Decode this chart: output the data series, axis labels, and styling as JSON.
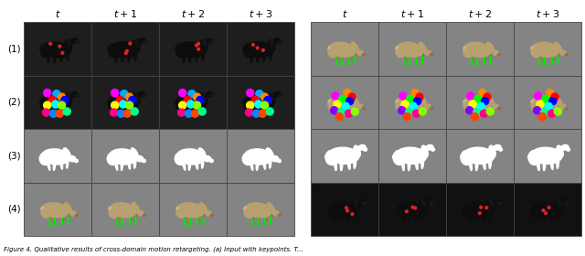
{
  "col_headers": [
    "$t$",
    "$t+1$",
    "$t+2$",
    "$t+3$"
  ],
  "row_labels": [
    "(1)",
    "(2)",
    "(3)",
    "(4)"
  ],
  "figure_width": 6.4,
  "figure_height": 2.8,
  "cell_bg_gray": "#848484",
  "dark_horse_bg": "#1c1c1c",
  "deer_bg": "#848484",
  "caption_text": "Figure 4. Qualitative results of cross-domain motion retargeting. (a) Input with keypoints. T...",
  "kp_colors_left": [
    "#ff00ff",
    "#00aaff",
    "#ff8800",
    "#ff0000",
    "#0000ff",
    "#ffff00",
    "#00ffff",
    "#88ff00",
    "#ff0088",
    "#0088ff",
    "#ff4400",
    "#00ff88"
  ],
  "kp_colors_right": [
    "#ff00ff",
    "#ff8800",
    "#ff0000",
    "#00ff00",
    "#0000ff",
    "#ffff00",
    "#00ffff",
    "#8800ff",
    "#00ff88",
    "#ff0088",
    "#88ff00",
    "#ff4400"
  ]
}
